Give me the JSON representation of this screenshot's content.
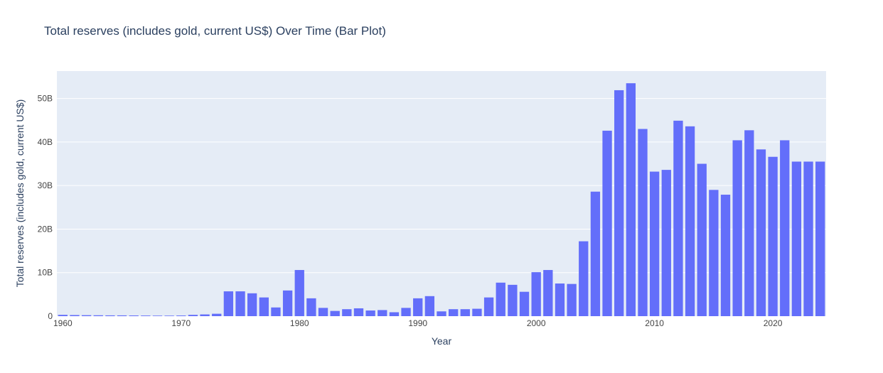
{
  "chart_data": {
    "type": "bar",
    "title": "Total reserves (includes gold, current US$) Over Time (Bar Plot)",
    "xlabel": "Year",
    "ylabel": "Total reserves (includes gold, current US$)",
    "x": [
      1960,
      1961,
      1962,
      1963,
      1964,
      1965,
      1966,
      1967,
      1968,
      1969,
      1970,
      1971,
      1972,
      1973,
      1974,
      1975,
      1976,
      1977,
      1978,
      1979,
      1980,
      1981,
      1982,
      1983,
      1984,
      1985,
      1986,
      1987,
      1988,
      1989,
      1990,
      1991,
      1992,
      1993,
      1994,
      1995,
      1996,
      1997,
      1998,
      1999,
      2000,
      2001,
      2002,
      2003,
      2004,
      2005,
      2006,
      2007,
      2008,
      2009,
      2010,
      2011,
      2012,
      2013,
      2014,
      2015,
      2016,
      2017,
      2018,
      2019,
      2020,
      2021,
      2022,
      2023,
      2024
    ],
    "values": [
      0.3,
      0.25,
      0.22,
      0.2,
      0.18,
      0.18,
      0.16,
      0.14,
      0.12,
      0.12,
      0.15,
      0.3,
      0.4,
      0.55,
      5.7,
      5.7,
      5.25,
      4.3,
      2.0,
      5.9,
      10.6,
      4.1,
      1.9,
      1.2,
      1.6,
      1.8,
      1.3,
      1.4,
      0.9,
      1.9,
      4.1,
      4.6,
      1.1,
      1.6,
      1.6,
      1.7,
      4.3,
      7.7,
      7.2,
      5.6,
      10.1,
      10.6,
      7.5,
      7.4,
      17.2,
      28.6,
      42.6,
      51.9,
      53.5,
      43.0,
      33.2,
      33.6,
      44.9,
      43.6,
      35.0,
      29.0,
      27.9,
      40.4,
      42.7,
      38.3,
      36.6,
      40.4,
      35.5,
      35.5,
      35.5
    ],
    "value_unit": "B",
    "xlim": [
      1959.5,
      2024.5
    ],
    "ylim": [
      0,
      56.3
    ],
    "x_ticks": [
      1960,
      1970,
      1980,
      1990,
      2000,
      2010,
      2020
    ],
    "y_ticks": [
      0,
      10,
      20,
      30,
      40,
      50
    ],
    "y_tick_labels": [
      "0",
      "10B",
      "20B",
      "30B",
      "40B",
      "50B"
    ],
    "grid": true,
    "colors": {
      "bar": "#636efa",
      "plot_bg": "#e5ecf6",
      "grid": "#ffffff",
      "text": "#2a3f5f",
      "tick_text": "#444444"
    }
  }
}
